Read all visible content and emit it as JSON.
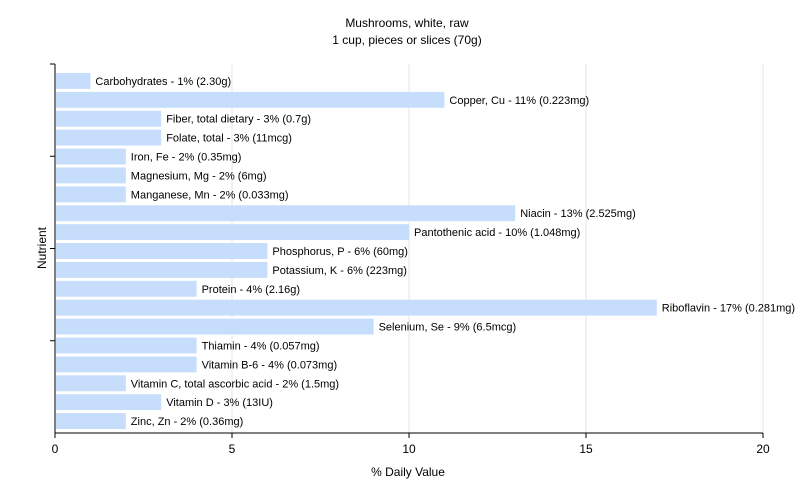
{
  "chart_data": {
    "type": "bar",
    "orientation": "horizontal",
    "title": "Mushrooms, white, raw",
    "subtitle": "1 cup, pieces or slices (70g)",
    "xlabel": "% Daily Value",
    "ylabel": "Nutrient",
    "xlim": [
      0,
      20
    ],
    "xticks": [
      0,
      5,
      10,
      15,
      20
    ],
    "grid": true,
    "bar_color": "#c6ddfc",
    "categories": [
      "Carbohydrates",
      "Copper, Cu",
      "Fiber, total dietary",
      "Folate, total",
      "Iron, Fe",
      "Magnesium, Mg",
      "Manganese, Mn",
      "Niacin",
      "Pantothenic acid",
      "Phosphorus, P",
      "Potassium, K",
      "Protein",
      "Riboflavin",
      "Selenium, Se",
      "Thiamin",
      "Vitamin B-6",
      "Vitamin C, total ascorbic acid",
      "Vitamin D",
      "Zinc, Zn"
    ],
    "values": [
      1,
      11,
      3,
      3,
      2,
      2,
      2,
      13,
      10,
      6,
      6,
      4,
      17,
      9,
      4,
      4,
      2,
      3,
      2
    ],
    "labels": [
      "Carbohydrates - 1% (2.30g)",
      "Copper, Cu - 11% (0.223mg)",
      "Fiber, total dietary - 3% (0.7g)",
      "Folate, total - 3% (11mcg)",
      "Iron, Fe - 2% (0.35mg)",
      "Magnesium, Mg - 2% (6mg)",
      "Manganese, Mn - 2% (0.033mg)",
      "Niacin - 13% (2.525mg)",
      "Pantothenic acid - 10% (1.048mg)",
      "Phosphorus, P - 6% (60mg)",
      "Potassium, K - 6% (223mg)",
      "Protein - 4% (2.16g)",
      "Riboflavin - 17% (0.281mg)",
      "Selenium, Se - 9% (6.5mcg)",
      "Thiamin - 4% (0.057mg)",
      "Vitamin B-6 - 4% (0.073mg)",
      "Vitamin C, total ascorbic acid - 2% (1.5mg)",
      "Vitamin D - 3% (13IU)",
      "Zinc, Zn - 2% (0.36mg)"
    ]
  }
}
